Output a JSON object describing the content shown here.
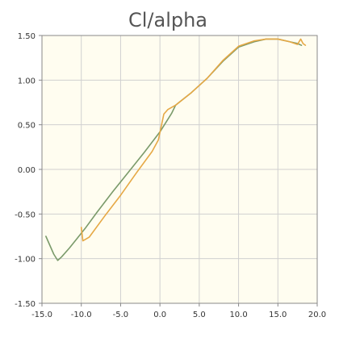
{
  "chart_data": {
    "type": "line",
    "title": "Cl/alpha",
    "xlabel": "",
    "ylabel": "",
    "xlim": [
      -15,
      20
    ],
    "ylim": [
      -1.5,
      1.5
    ],
    "grid": true,
    "legend": "none",
    "x_ticks": [
      -15,
      -10,
      -5,
      0,
      5,
      10,
      15,
      20
    ],
    "x_tick_labels": [
      "-15.0",
      "-10.0",
      "-5.0",
      "0.0",
      "5.0",
      "10.0",
      "15.0",
      "20.0"
    ],
    "y_ticks": [
      -1.5,
      -1.0,
      -0.5,
      0.0,
      0.5,
      1.0,
      1.5
    ],
    "y_tick_labels": [
      "-1.50",
      "-1.00",
      "-0.50",
      "0.00",
      "0.50",
      "1.00",
      "1.50"
    ],
    "colors": {
      "plot_background": "#fffdf0",
      "grid": "#d0d0d0",
      "axis": "#888888"
    },
    "series": [
      {
        "color": "#7a9a6a",
        "x": [
          -14.5,
          -13.5,
          -13.0,
          -12.5,
          -11.5,
          -10.5,
          -9.5,
          -8.0,
          -6.0,
          -4.0,
          -2.0,
          0.0,
          1.5,
          2.0,
          4.0,
          6.0,
          8.0,
          10.0,
          12.0,
          13.5,
          15.0,
          16.5,
          17.5,
          18.0
        ],
        "y": [
          -0.75,
          -0.95,
          -1.02,
          -0.98,
          -0.88,
          -0.77,
          -0.66,
          -0.48,
          -0.25,
          -0.03,
          0.19,
          0.42,
          0.63,
          0.72,
          0.86,
          1.02,
          1.21,
          1.37,
          1.43,
          1.46,
          1.46,
          1.43,
          1.41,
          1.39
        ]
      },
      {
        "color": "#e6a845",
        "x": [
          -10.0,
          -9.8,
          -9.0,
          -7.0,
          -5.0,
          -3.0,
          -1.0,
          -0.2,
          0.5,
          1.0,
          2.0,
          4.0,
          6.0,
          8.0,
          10.0,
          12.0,
          13.5,
          15.0,
          16.5,
          17.5,
          17.9,
          18.2,
          18.5
        ],
        "y": [
          -0.65,
          -0.8,
          -0.76,
          -0.52,
          -0.29,
          -0.04,
          0.2,
          0.33,
          0.62,
          0.67,
          0.72,
          0.86,
          1.02,
          1.22,
          1.38,
          1.44,
          1.46,
          1.46,
          1.43,
          1.4,
          1.46,
          1.41,
          1.39
        ]
      }
    ]
  }
}
